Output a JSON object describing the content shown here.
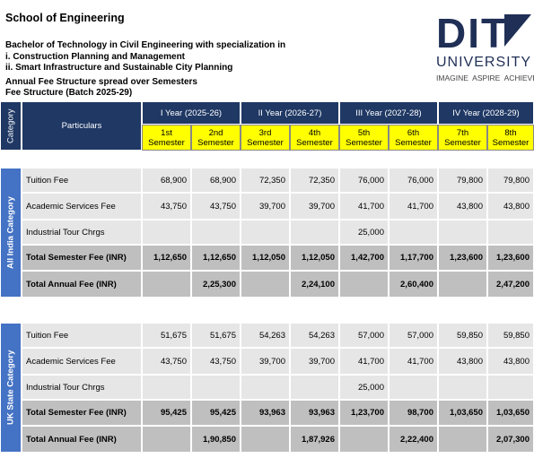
{
  "header": {
    "school": "School of Engineering",
    "program": "Bachelor of Technology  in Civil Engineering with specialization in",
    "spec1": "i.  Construction Planning and Management",
    "spec2": "ii. Smart Infrastructure and Sustainable City Planning",
    "structure": "Annual Fee Structure spread over Semesters",
    "batch": "Fee Structure (Batch 2025-29)"
  },
  "logo": {
    "mark": "DIT",
    "name": "UNIVERSITY",
    "tagline": "IMAGINE  ASPIRE  ACHIEVE"
  },
  "table": {
    "category_header": "Category",
    "particulars_header": "Particulars",
    "years": [
      "I Year (2025-26)",
      "II Year (2026-27)",
      "III Year (2027-28)",
      "IV Year (2028-29)"
    ],
    "semesters": [
      [
        "1st",
        "Semester"
      ],
      [
        "2nd",
        "Semester"
      ],
      [
        "3rd",
        "Semester"
      ],
      [
        "4th",
        "Semester"
      ],
      [
        "5th",
        "Semester"
      ],
      [
        "6th",
        "Semester"
      ],
      [
        "7th",
        "Semester"
      ],
      [
        "8th",
        "Semester"
      ]
    ],
    "sections": [
      {
        "category": "All India Category",
        "rows": [
          {
            "particular": "Tuition Fee",
            "values": [
              "68,900",
              "68,900",
              "72,350",
              "72,350",
              "76,000",
              "76,000",
              "79,800",
              "79,800"
            ]
          },
          {
            "particular": "Academic Services Fee",
            "values": [
              "43,750",
              "43,750",
              "39,700",
              "39,700",
              "41,700",
              "41,700",
              "43,800",
              "43,800"
            ]
          },
          {
            "particular": "Industrial Tour Chrgs",
            "values": [
              null,
              null,
              null,
              null,
              "25,000",
              null,
              null,
              null
            ]
          },
          {
            "particular": "Total Semester Fee (INR)",
            "values": [
              "1,12,650",
              "1,12,650",
              "1,12,050",
              "1,12,050",
              "1,42,700",
              "1,17,700",
              "1,23,600",
              "1,23,600"
            ]
          }
        ],
        "annual_label": "Total Annual Fee (INR)",
        "annual": [
          "2,25,300",
          "2,24,100",
          "2,60,400",
          "2,47,200"
        ]
      },
      {
        "category": "UK State Category",
        "rows": [
          {
            "particular": "Tuition Fee",
            "values": [
              "51,675",
              "51,675",
              "54,263",
              "54,263",
              "57,000",
              "57,000",
              "59,850",
              "59,850"
            ]
          },
          {
            "particular": "Academic Services Fee",
            "values": [
              "43,750",
              "43,750",
              "39,700",
              "39,700",
              "41,700",
              "41,700",
              "43,800",
              "43,800"
            ]
          },
          {
            "particular": "Industrial Tour Chrgs",
            "values": [
              null,
              null,
              null,
              null,
              "25,000",
              null,
              null,
              null
            ]
          },
          {
            "particular": "Total Semester Fee (INR)",
            "values": [
              "95,425",
              "95,425",
              "93,963",
              "93,963",
              "1,23,700",
              "98,700",
              "1,03,650",
              "1,03,650"
            ]
          }
        ],
        "annual_label": "Total Annual Fee (INR)",
        "annual": [
          "1,90,850",
          "1,87,926",
          "2,22,400",
          "2,07,300"
        ]
      }
    ]
  }
}
